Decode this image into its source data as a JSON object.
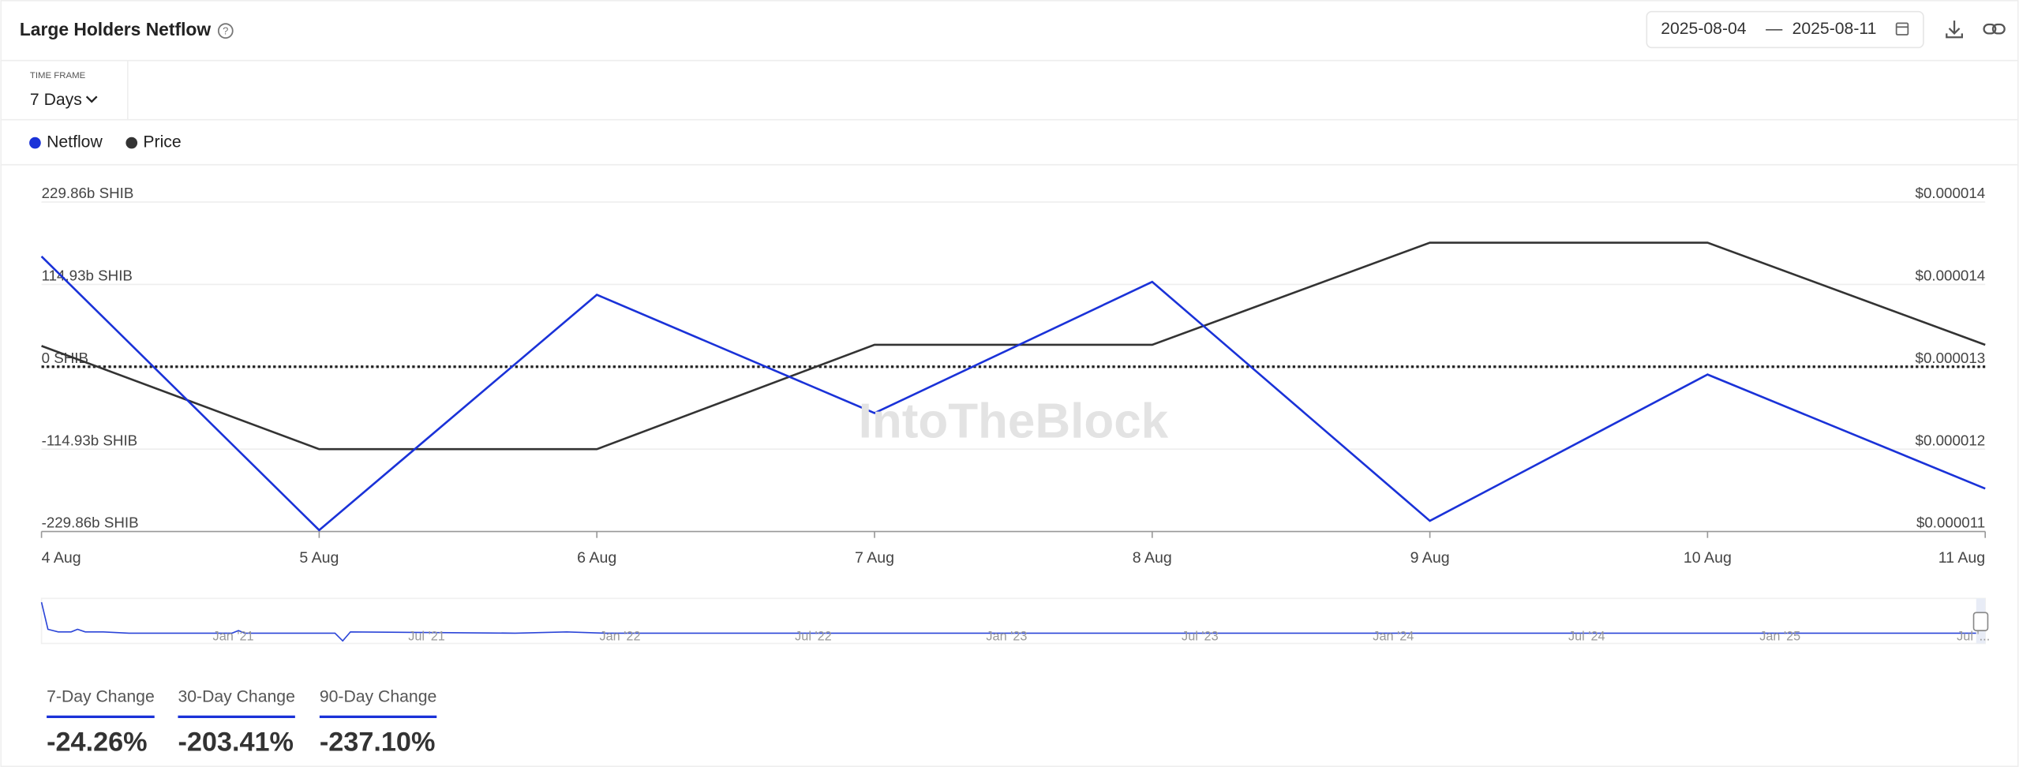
{
  "header": {
    "title": "Large Holders Netflow",
    "date_from": "2025-08-04",
    "date_sep": "—",
    "date_to": "2025-08-11"
  },
  "timeframe": {
    "label": "TIME FRAME",
    "value": "7 Days"
  },
  "watermark": "IntoTheBlock",
  "chart_data": {
    "type": "line",
    "categories": [
      "4 Aug",
      "5 Aug",
      "6 Aug",
      "7 Aug",
      "8 Aug",
      "9 Aug",
      "10 Aug",
      "11 Aug"
    ],
    "series": [
      {
        "name": "Netflow",
        "color": "#1a32d8",
        "values": [
          154,
          -228,
          100.5,
          -64.6,
          118.5,
          -215,
          -10.8,
          -170
        ]
      },
      {
        "name": "Price",
        "color": "#333333",
        "axis": "y2",
        "values": [
          1.299e-05,
          1.205e-05,
          1.205e-05,
          1.3e-05,
          1.3e-05,
          1.393e-05,
          1.393e-05,
          1.3e-05
        ]
      }
    ],
    "ylim": [
      -229.86,
      229.86
    ],
    "yticks": [
      {
        "value": -229.86,
        "label": "-229.86b SHIB"
      },
      {
        "value": -114.93,
        "label": "-114.93b SHIB"
      },
      {
        "value": 0,
        "label": "0 SHIB"
      },
      {
        "value": 114.93,
        "label": "114.93b SHIB"
      },
      {
        "value": 229.86,
        "label": "229.86b SHIB"
      }
    ],
    "y2lim": [
      1.13e-05,
      1.43e-05
    ],
    "y2ticks": [
      {
        "value": 1.13e-05,
        "label": "$0.000011"
      },
      {
        "value": 1.205e-05,
        "label": "$0.000012"
      },
      {
        "value": 1.28e-05,
        "label": "$0.000013"
      },
      {
        "value": 1.355e-05,
        "label": "$0.000014"
      },
      {
        "value": 1.43e-05,
        "label": "$0.000014"
      }
    ],
    "grid": true
  },
  "navigator": {
    "labels": [
      "Jan '21",
      "Jul '21",
      "Jan '22",
      "Jul '22",
      "Jan '23",
      "Jul '23",
      "Jan '24",
      "Jul '24",
      "Jan '25",
      "Jul '..."
    ]
  },
  "changes": [
    {
      "label": "7-Day Change",
      "value": "-24.26%"
    },
    {
      "label": "30-Day Change",
      "value": "-203.41%"
    },
    {
      "label": "90-Day Change",
      "value": "-237.10%"
    }
  ]
}
